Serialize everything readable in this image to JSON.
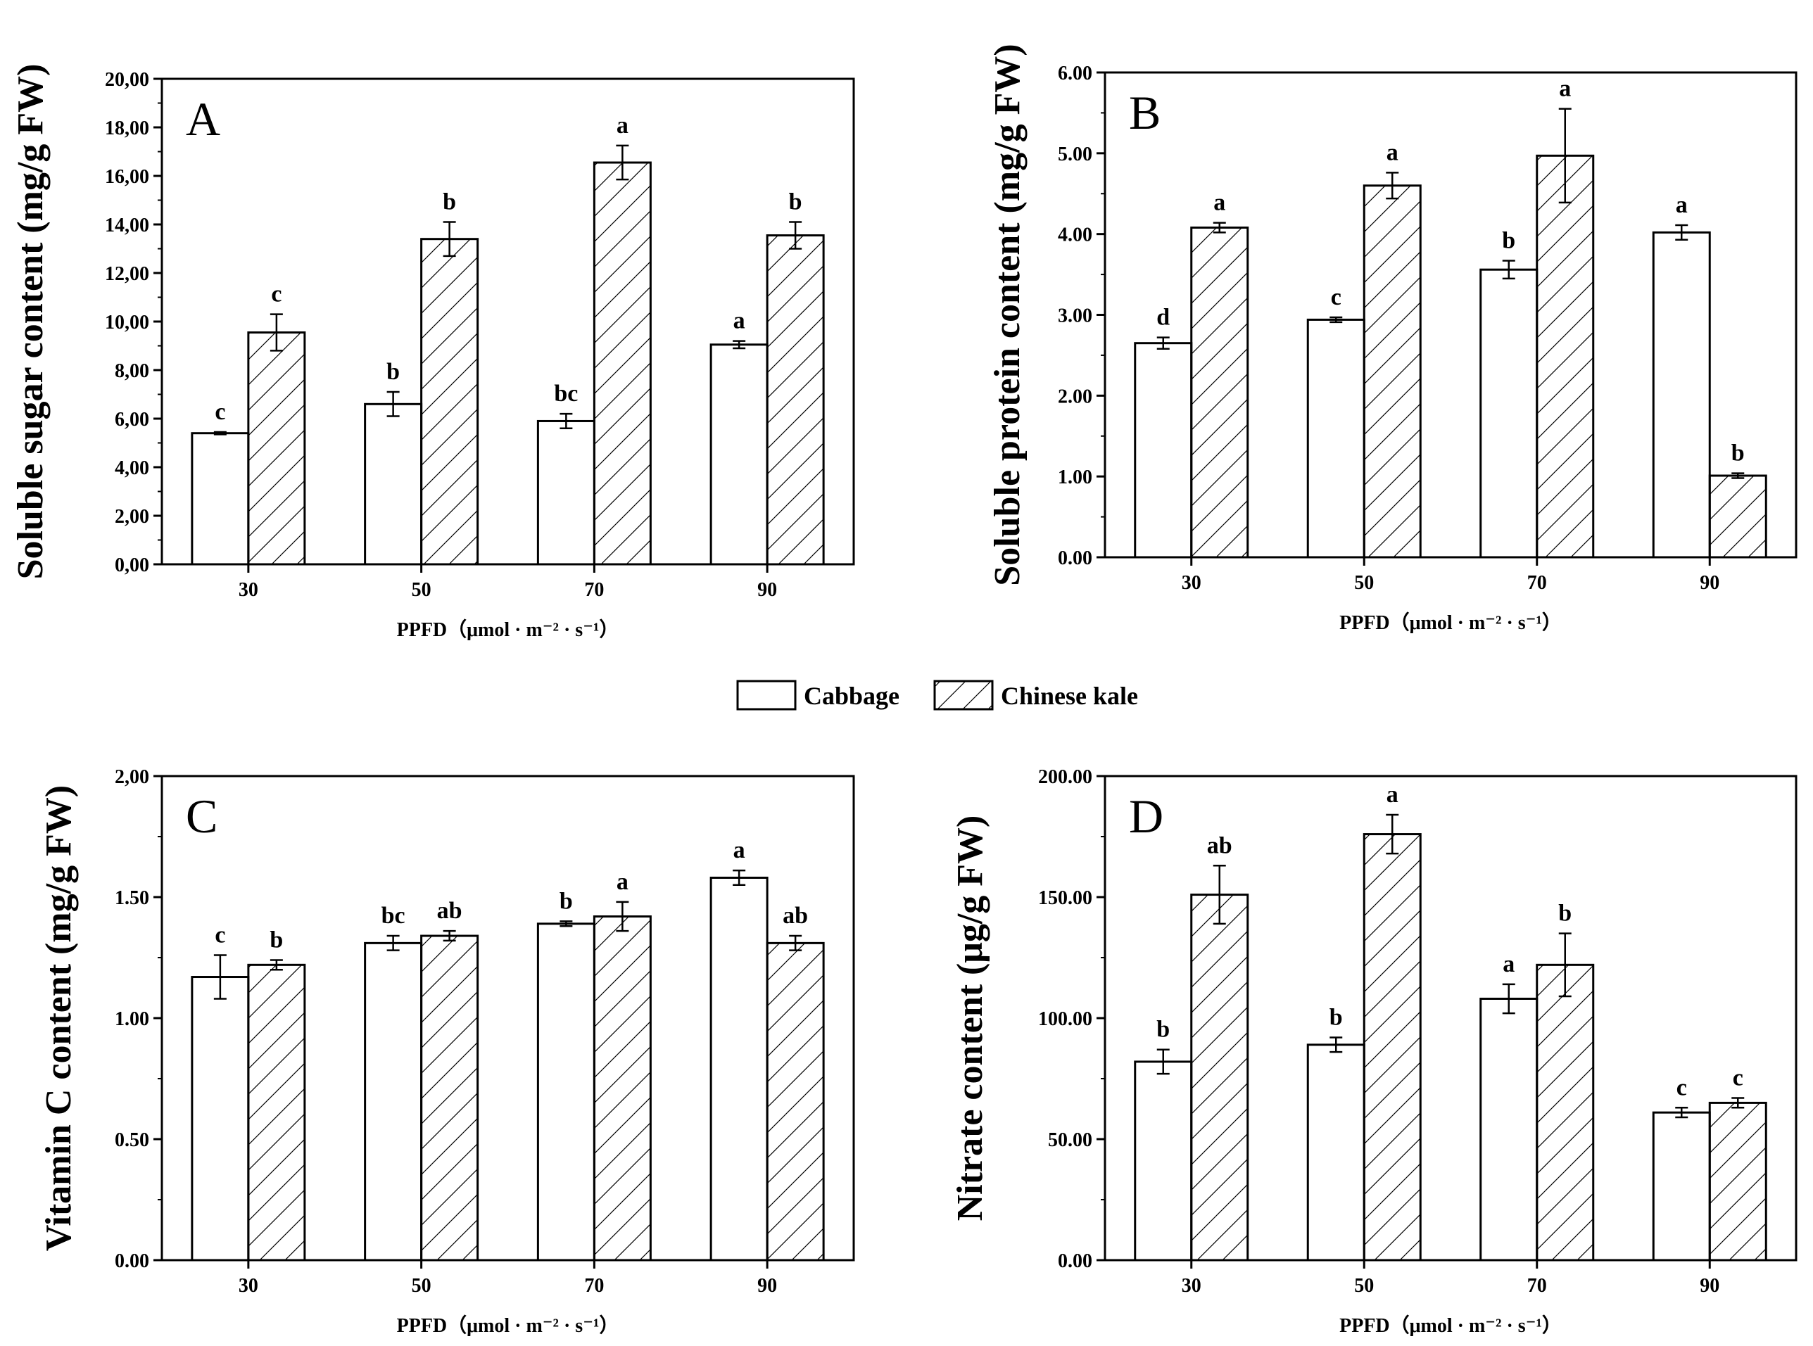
{
  "chart_data": [
    {
      "type": "bar",
      "panel": "A",
      "categories": [
        "30",
        "50",
        "70",
        "90"
      ],
      "xlabel": "PPFD（μmol · m⁻² · s⁻¹）",
      "ylabel": "Soluble sugar content (mg/g  FW)",
      "ylim": [
        0,
        20
      ],
      "yticks": [
        "0,00",
        "2,00",
        "4,00",
        "6,00",
        "8,00",
        "10,00",
        "12,00",
        "14,00",
        "16,00",
        "18,00",
        "20,00"
      ],
      "series": [
        {
          "name": "Cabbage",
          "values": [
            5.4,
            6.6,
            5.9,
            9.05
          ],
          "errors": [
            0.05,
            0.5,
            0.3,
            0.15
          ],
          "labels": [
            "c",
            "b",
            "bc",
            "a"
          ]
        },
        {
          "name": "Chinese kale",
          "values": [
            9.55,
            13.4,
            16.55,
            13.55
          ],
          "errors": [
            0.75,
            0.7,
            0.7,
            0.55
          ],
          "labels": [
            "c",
            "b",
            "a",
            "b"
          ]
        }
      ]
    },
    {
      "type": "bar",
      "panel": "B",
      "categories": [
        "30",
        "50",
        "70",
        "90"
      ],
      "xlabel": "PPFD（μmol · m⁻² · s⁻¹）",
      "ylabel": "Soluble protein content (mg/g  FW)",
      "ylim": [
        0,
        6
      ],
      "yticks": [
        "0.00",
        "1.00",
        "2.00",
        "3.00",
        "4.00",
        "5.00",
        "6.00"
      ],
      "series": [
        {
          "name": "Cabbage",
          "values": [
            2.65,
            2.94,
            3.56,
            4.02
          ],
          "errors": [
            0.07,
            0.03,
            0.11,
            0.09
          ],
          "labels": [
            "d",
            "c",
            "b",
            "a"
          ]
        },
        {
          "name": "Chinese kale",
          "values": [
            4.08,
            4.6,
            4.97,
            1.01
          ],
          "errors": [
            0.06,
            0.16,
            0.58,
            0.03
          ],
          "labels": [
            "a",
            "a",
            "a",
            "b"
          ]
        }
      ]
    },
    {
      "type": "bar",
      "panel": "C",
      "categories": [
        "30",
        "50",
        "70",
        "90"
      ],
      "xlabel": "PPFD（μmol · m⁻² · s⁻¹）",
      "ylabel": "Vitamin C content (mg/g  FW)",
      "ylim": [
        0,
        2
      ],
      "yticks": [
        "0.00",
        "0.50",
        "1.00",
        "1.50",
        "2,00"
      ],
      "series": [
        {
          "name": "Cabbage",
          "values": [
            1.17,
            1.31,
            1.39,
            1.58
          ],
          "errors": [
            0.09,
            0.03,
            0.01,
            0.03
          ],
          "labels": [
            "c",
            "bc",
            "b",
            "a"
          ]
        },
        {
          "name": "Chinese kale",
          "values": [
            1.22,
            1.34,
            1.42,
            1.31
          ],
          "errors": [
            0.02,
            0.02,
            0.06,
            0.03
          ],
          "labels": [
            "b",
            "ab",
            "a",
            "ab"
          ]
        }
      ]
    },
    {
      "type": "bar",
      "panel": "D",
      "categories": [
        "30",
        "50",
        "70",
        "90"
      ],
      "xlabel": "PPFD（μmol · m⁻² · s⁻¹）",
      "ylabel": "Nitrate content (μg/g  FW)",
      "ylim": [
        0,
        200
      ],
      "yticks": [
        "0.00",
        "50.00",
        "100.00",
        "150.00",
        "200.00"
      ],
      "series": [
        {
          "name": "Cabbage",
          "values": [
            82,
            89,
            108,
            61
          ],
          "errors": [
            5,
            3,
            6,
            2
          ],
          "labels": [
            "b",
            "b",
            "a",
            "c"
          ]
        },
        {
          "name": "Chinese kale",
          "values": [
            151,
            176,
            122,
            65
          ],
          "errors": [
            12,
            8,
            13,
            2
          ],
          "labels": [
            "ab",
            "a",
            "b",
            "c"
          ]
        }
      ]
    }
  ],
  "legend": {
    "items": [
      {
        "label": "Cabbage",
        "pattern": "plain"
      },
      {
        "label": "Chinese kale",
        "pattern": "hatched"
      }
    ]
  }
}
